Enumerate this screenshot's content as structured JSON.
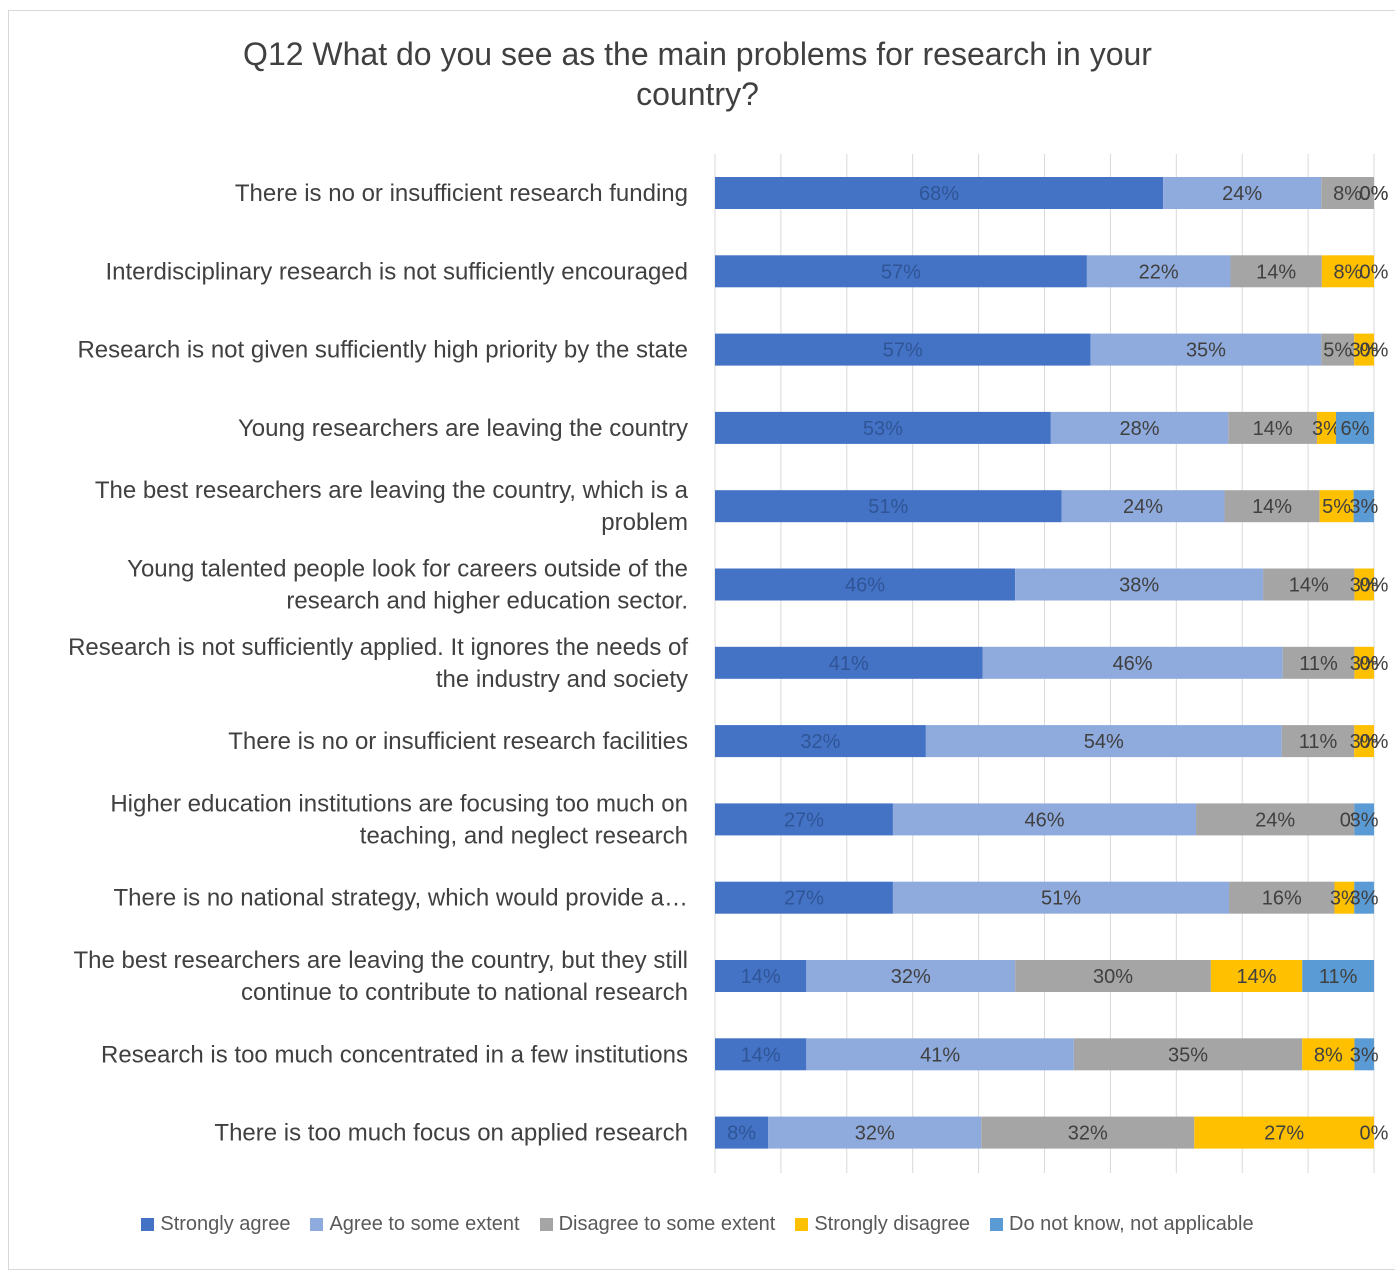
{
  "chart_data": {
    "type": "bar",
    "orientation": "horizontal",
    "stacked": "percent",
    "title": "Q12 What do you see as the  main problems for research in your country?",
    "title_lines": [
      "Q12 What do you see as the  main problems for research in your",
      "country?"
    ],
    "categories": [
      [
        "There is no or insufficient research funding"
      ],
      [
        "Interdisciplinary research is not sufficiently encouraged"
      ],
      [
        "Research is not given sufficiently high priority by the state"
      ],
      [
        "Young researchers are leaving the country"
      ],
      [
        "The best researchers are leaving the country, which is a",
        "problem"
      ],
      [
        "Young talented people look for careers outside of the",
        "research and higher education sector."
      ],
      [
        "Research is not sufficiently applied. It ignores the needs of",
        "the industry and society"
      ],
      [
        "There is no or insufficient research facilities"
      ],
      [
        "Higher education institutions are focusing too much on",
        "teaching, and neglect research"
      ],
      [
        "There is no national strategy, which would provide a…"
      ],
      [
        "The best researchers are leaving the country, but they still",
        "continue to contribute to national research"
      ],
      [
        "Research is too much concentrated in a few institutions"
      ],
      [
        "There is too much focus on applied research"
      ]
    ],
    "series": [
      {
        "name": "Strongly agree",
        "color": "#4472c4",
        "labelColor": "#2f5597",
        "values": [
          68,
          57,
          57,
          53,
          51,
          46,
          41,
          32,
          27,
          27,
          14,
          14,
          8
        ]
      },
      {
        "name": "Agree to some extent",
        "color": "#8faadc",
        "labelColor": "#404040",
        "values": [
          24,
          22,
          35,
          28,
          24,
          38,
          46,
          54,
          46,
          51,
          32,
          41,
          32
        ]
      },
      {
        "name": "Disagree to some extent",
        "color": "#a5a5a5",
        "labelColor": "#404040",
        "values": [
          8,
          14,
          5,
          14,
          14,
          14,
          11,
          11,
          24,
          16,
          30,
          35,
          32
        ]
      },
      {
        "name": "Strongly disagree",
        "color": "#ffc000",
        "labelColor": "#404040",
        "values": [
          0,
          8,
          3,
          3,
          5,
          3,
          3,
          3,
          0,
          3,
          14,
          8,
          27
        ]
      },
      {
        "name": "Do not know, not applicable",
        "color": "#5b9bd5",
        "labelColor": "#404040",
        "values": [
          0,
          0,
          0,
          6,
          3,
          0,
          0,
          0,
          3,
          3,
          11,
          3,
          0
        ]
      }
    ],
    "legend_position": "bottom",
    "gridlines": true
  }
}
